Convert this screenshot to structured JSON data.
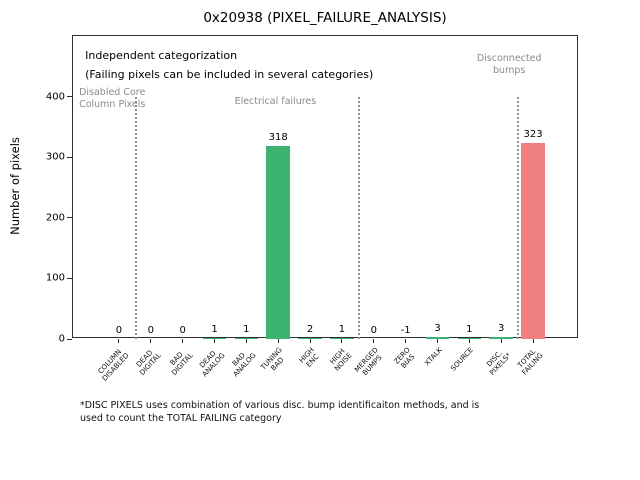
{
  "figure": {
    "footnote": "*DISC PIXELS uses combination of various disc. bump identificaiton methods, and is\nused to count the TOTAL FAILING category"
  },
  "chart_data": {
    "type": "bar",
    "title": "0x20938 (PIXEL_FAILURE_ANALYSIS)",
    "xlabel": "",
    "ylabel": "Number of pixels",
    "ylim": [
      0,
      500
    ],
    "yticks": [
      0,
      100,
      200,
      300,
      400
    ],
    "grid": false,
    "legend": false,
    "categories": [
      "COLUMN\nDISABLED",
      "DEAD\nDIGITAL",
      "BAD\nDIGITAL",
      "DEAD\nANALOG",
      "BAD\nANALOG",
      "TUNING\nBAD",
      "HIGH\nENC",
      "HIGH\nNOISE",
      "MERGED\nBUMPS",
      "ZERO\nBIAS",
      "XTALK",
      "SOURCE",
      "DISC.\nPIXELS*",
      "TOTAL\nFAILING"
    ],
    "values": [
      0,
      0,
      0,
      1,
      1,
      318,
      2,
      1,
      0,
      -1,
      3,
      1,
      3,
      323
    ],
    "colors": [
      "#3cb371",
      "#3cb371",
      "#3cb371",
      "#3cb371",
      "#3cb371",
      "#3cb371",
      "#3cb371",
      "#3cb371",
      "#3cb371",
      "#3cb371",
      "#3cb371",
      "#3cb371",
      "#3cb371",
      "#f08080"
    ],
    "separators": {
      "positions": [
        0.5,
        7.5,
        12.5
      ],
      "ymax_value": 400,
      "color": "#8f8f8f",
      "style": "dotted"
    },
    "annotations": [
      {
        "id": "independent-categorization",
        "text": "Independent categorization\n(Failing pixels can be included in several categories)",
        "color": "#000000",
        "font_px": 11,
        "line_height": 1.7,
        "align": "left",
        "fx": 0.024,
        "py": 11
      },
      {
        "id": "section-disabled-core-column-pixels",
        "text": "Disabled Core\nColumn Pixels",
        "color": "#8a8a8a",
        "font_px": 9.5,
        "line_height": 1.3,
        "align": "left",
        "fx": 0.012,
        "py": 51
      },
      {
        "id": "section-electrical-failures",
        "text": "Electrical failures",
        "color": "#8a8a8a",
        "font_px": 9.5,
        "line_height": 1.3,
        "align": "center",
        "fx": 0.4,
        "py": 60
      },
      {
        "id": "section-disconnected-bumps",
        "text": "Disconnected\nbumps",
        "color": "#8a8a8a",
        "font_px": 9.5,
        "line_height": 1.3,
        "align": "center",
        "fx": 0.862,
        "py": 17
      }
    ]
  }
}
